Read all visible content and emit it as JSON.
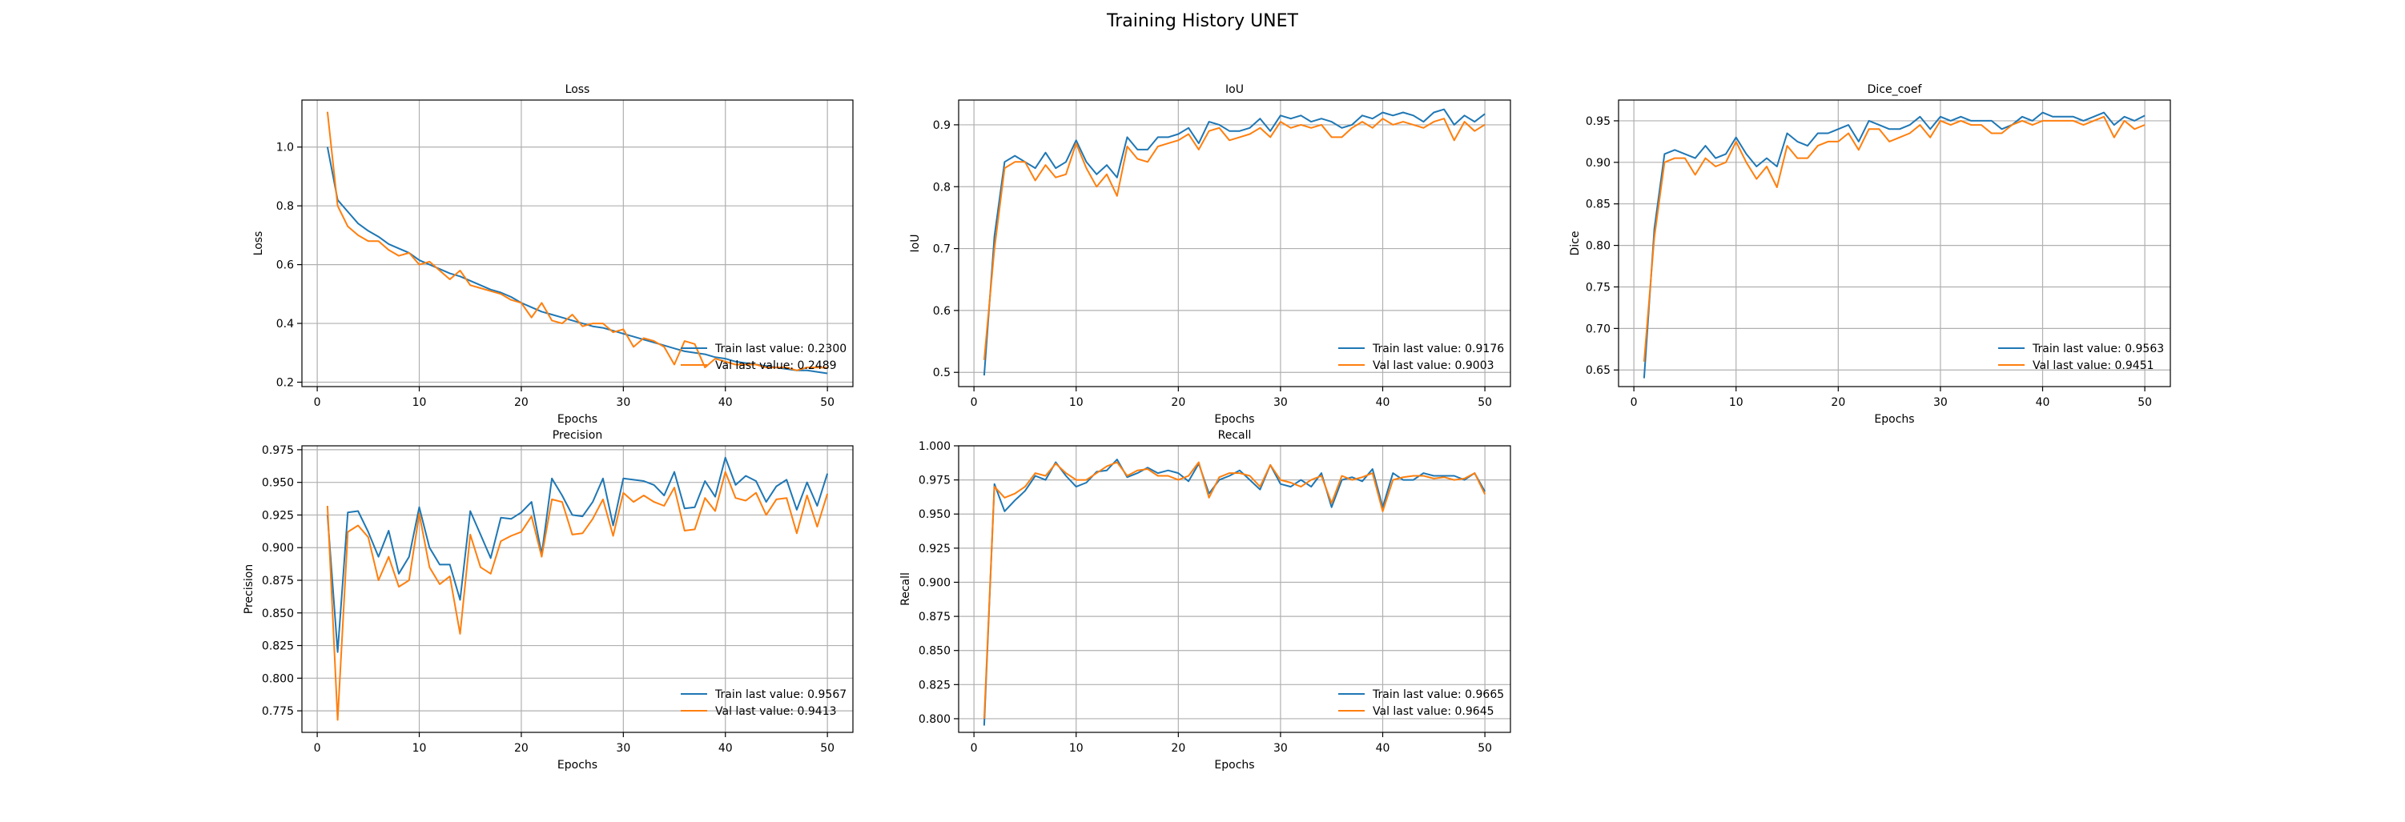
{
  "figure": {
    "title": "Training History UNET"
  },
  "colors": {
    "train": "#1f77b4",
    "val": "#ff7f0e",
    "grid": "#b0b0b0",
    "axis": "#000000"
  },
  "chart_data": [
    {
      "type": "line",
      "title": "Loss",
      "xlabel": "Epochs",
      "ylabel": "Loss",
      "xlim": [
        -1.5,
        52.5
      ],
      "ylim": [
        0.185,
        1.16
      ],
      "xticks": [
        0,
        10,
        20,
        30,
        40,
        50
      ],
      "xtick_labels": [
        "0",
        "10",
        "20",
        "30",
        "40",
        "50"
      ],
      "yticks": [
        0.2,
        0.4,
        0.6,
        0.8,
        1.0
      ],
      "ytick_labels": [
        "0.2",
        "0.4",
        "0.6",
        "0.8",
        "1.0"
      ],
      "grid": true,
      "legend_position": "lower right",
      "x": [
        1,
        2,
        3,
        4,
        5,
        6,
        7,
        8,
        9,
        10,
        11,
        12,
        13,
        14,
        15,
        16,
        17,
        18,
        19,
        20,
        21,
        22,
        23,
        24,
        25,
        26,
        27,
        28,
        29,
        30,
        31,
        32,
        33,
        34,
        35,
        36,
        37,
        38,
        39,
        40,
        41,
        42,
        43,
        44,
        45,
        46,
        47,
        48,
        49,
        50
      ],
      "series": [
        {
          "name": "Train last value: 0.2300",
          "color": "#1f77b4",
          "values": [
            1.0,
            0.82,
            0.78,
            0.74,
            0.715,
            0.695,
            0.67,
            0.655,
            0.64,
            0.615,
            0.6,
            0.585,
            0.57,
            0.56,
            0.545,
            0.53,
            0.515,
            0.505,
            0.49,
            0.47,
            0.455,
            0.44,
            0.43,
            0.42,
            0.41,
            0.4,
            0.39,
            0.385,
            0.375,
            0.365,
            0.355,
            0.345,
            0.335,
            0.325,
            0.315,
            0.305,
            0.3,
            0.295,
            0.285,
            0.28,
            0.27,
            0.265,
            0.26,
            0.255,
            0.25,
            0.245,
            0.24,
            0.24,
            0.235,
            0.23
          ]
        },
        {
          "name": "Val last value: 0.2489",
          "color": "#ff7f0e",
          "values": [
            1.12,
            0.8,
            0.73,
            0.7,
            0.68,
            0.68,
            0.65,
            0.63,
            0.64,
            0.6,
            0.61,
            0.58,
            0.55,
            0.58,
            0.53,
            0.52,
            0.51,
            0.5,
            0.48,
            0.47,
            0.42,
            0.47,
            0.41,
            0.4,
            0.43,
            0.39,
            0.4,
            0.4,
            0.37,
            0.38,
            0.32,
            0.35,
            0.34,
            0.32,
            0.26,
            0.34,
            0.33,
            0.25,
            0.28,
            0.27,
            0.26,
            0.26,
            0.26,
            0.25,
            0.25,
            0.25,
            0.24,
            0.25,
            0.25,
            0.2489
          ]
        }
      ]
    },
    {
      "type": "line",
      "title": "IoU",
      "xlabel": "Epochs",
      "ylabel": "IoU",
      "xlim": [
        -1.5,
        52.5
      ],
      "ylim": [
        0.477,
        0.94
      ],
      "xticks": [
        0,
        10,
        20,
        30,
        40,
        50
      ],
      "xtick_labels": [
        "0",
        "10",
        "20",
        "30",
        "40",
        "50"
      ],
      "yticks": [
        0.5,
        0.6,
        0.7,
        0.8,
        0.9
      ],
      "ytick_labels": [
        "0.5",
        "0.6",
        "0.7",
        "0.8",
        "0.9"
      ],
      "grid": true,
      "legend_position": "lower right",
      "x": [
        1,
        2,
        3,
        4,
        5,
        6,
        7,
        8,
        9,
        10,
        11,
        12,
        13,
        14,
        15,
        16,
        17,
        18,
        19,
        20,
        21,
        22,
        23,
        24,
        25,
        26,
        27,
        28,
        29,
        30,
        31,
        32,
        33,
        34,
        35,
        36,
        37,
        38,
        39,
        40,
        41,
        42,
        43,
        44,
        45,
        46,
        47,
        48,
        49,
        50
      ],
      "series": [
        {
          "name": "Train last value: 0.9176",
          "color": "#1f77b4",
          "values": [
            0.495,
            0.72,
            0.84,
            0.85,
            0.84,
            0.83,
            0.855,
            0.83,
            0.84,
            0.875,
            0.84,
            0.82,
            0.835,
            0.815,
            0.88,
            0.86,
            0.86,
            0.88,
            0.88,
            0.885,
            0.895,
            0.87,
            0.905,
            0.9,
            0.89,
            0.89,
            0.895,
            0.91,
            0.89,
            0.915,
            0.91,
            0.915,
            0.905,
            0.91,
            0.905,
            0.895,
            0.9,
            0.915,
            0.91,
            0.92,
            0.915,
            0.92,
            0.915,
            0.905,
            0.92,
            0.925,
            0.9,
            0.915,
            0.905,
            0.9176
          ]
        },
        {
          "name": "Val last value: 0.9003",
          "color": "#ff7f0e",
          "values": [
            0.52,
            0.7,
            0.83,
            0.84,
            0.84,
            0.81,
            0.835,
            0.815,
            0.82,
            0.87,
            0.83,
            0.8,
            0.82,
            0.785,
            0.865,
            0.845,
            0.84,
            0.865,
            0.87,
            0.875,
            0.885,
            0.86,
            0.89,
            0.895,
            0.875,
            0.88,
            0.885,
            0.895,
            0.88,
            0.905,
            0.895,
            0.9,
            0.895,
            0.9,
            0.88,
            0.88,
            0.895,
            0.905,
            0.895,
            0.91,
            0.9,
            0.905,
            0.9,
            0.895,
            0.905,
            0.91,
            0.875,
            0.905,
            0.89,
            0.9003
          ]
        }
      ]
    },
    {
      "type": "line",
      "title": "Dice_coef",
      "xlabel": "Epochs",
      "ylabel": "Dice",
      "xlim": [
        -1.5,
        52.5
      ],
      "ylim": [
        0.63,
        0.975
      ],
      "xticks": [
        0,
        10,
        20,
        30,
        40,
        50
      ],
      "xtick_labels": [
        "0",
        "10",
        "20",
        "30",
        "40",
        "50"
      ],
      "yticks": [
        0.65,
        0.7,
        0.75,
        0.8,
        0.85,
        0.9,
        0.95
      ],
      "ytick_labels": [
        "0.65",
        "0.70",
        "0.75",
        "0.80",
        "0.85",
        "0.90",
        "0.95"
      ],
      "grid": true,
      "legend_position": "lower right",
      "x": [
        1,
        2,
        3,
        4,
        5,
        6,
        7,
        8,
        9,
        10,
        11,
        12,
        13,
        14,
        15,
        16,
        17,
        18,
        19,
        20,
        21,
        22,
        23,
        24,
        25,
        26,
        27,
        28,
        29,
        30,
        31,
        32,
        33,
        34,
        35,
        36,
        37,
        38,
        39,
        40,
        41,
        42,
        43,
        44,
        45,
        46,
        47,
        48,
        49,
        50
      ],
      "series": [
        {
          "name": "Train last value: 0.9563",
          "color": "#1f77b4",
          "values": [
            0.64,
            0.82,
            0.91,
            0.915,
            0.91,
            0.905,
            0.92,
            0.905,
            0.91,
            0.93,
            0.91,
            0.895,
            0.905,
            0.895,
            0.935,
            0.925,
            0.92,
            0.935,
            0.935,
            0.94,
            0.945,
            0.925,
            0.95,
            0.945,
            0.94,
            0.94,
            0.945,
            0.955,
            0.94,
            0.955,
            0.95,
            0.955,
            0.95,
            0.95,
            0.95,
            0.94,
            0.945,
            0.955,
            0.95,
            0.96,
            0.955,
            0.955,
            0.955,
            0.95,
            0.955,
            0.96,
            0.945,
            0.955,
            0.95,
            0.9563
          ]
        },
        {
          "name": "Val last value: 0.9451",
          "color": "#ff7f0e",
          "values": [
            0.66,
            0.81,
            0.9,
            0.905,
            0.905,
            0.885,
            0.905,
            0.895,
            0.9,
            0.925,
            0.9,
            0.88,
            0.895,
            0.87,
            0.92,
            0.905,
            0.905,
            0.92,
            0.925,
            0.925,
            0.935,
            0.915,
            0.94,
            0.94,
            0.925,
            0.93,
            0.935,
            0.945,
            0.93,
            0.95,
            0.945,
            0.95,
            0.945,
            0.945,
            0.935,
            0.935,
            0.945,
            0.95,
            0.945,
            0.95,
            0.95,
            0.95,
            0.95,
            0.945,
            0.95,
            0.955,
            0.93,
            0.95,
            0.94,
            0.9451
          ]
        }
      ]
    },
    {
      "type": "line",
      "title": "Precision",
      "xlabel": "Epochs",
      "ylabel": "Precision",
      "xlim": [
        -1.5,
        52.5
      ],
      "ylim": [
        0.7585,
        0.978
      ],
      "xticks": [
        0,
        10,
        20,
        30,
        40,
        50
      ],
      "xtick_labels": [
        "0",
        "10",
        "20",
        "30",
        "40",
        "50"
      ],
      "yticks": [
        0.775,
        0.8,
        0.825,
        0.85,
        0.875,
        0.9,
        0.925,
        0.95,
        0.975
      ],
      "ytick_labels": [
        "0.775",
        "0.800",
        "0.825",
        "0.850",
        "0.875",
        "0.900",
        "0.925",
        "0.950",
        "0.975"
      ],
      "grid": true,
      "legend_position": "lower right",
      "x": [
        1,
        2,
        3,
        4,
        5,
        6,
        7,
        8,
        9,
        10,
        11,
        12,
        13,
        14,
        15,
        16,
        17,
        18,
        19,
        20,
        21,
        22,
        23,
        24,
        25,
        26,
        27,
        28,
        29,
        30,
        31,
        32,
        33,
        34,
        35,
        36,
        37,
        38,
        39,
        40,
        41,
        42,
        43,
        44,
        45,
        46,
        47,
        48,
        49,
        50
      ],
      "series": [
        {
          "name": "Train last value: 0.9567",
          "color": "#1f77b4",
          "values": [
            0.925,
            0.82,
            0.927,
            0.928,
            0.912,
            0.893,
            0.913,
            0.88,
            0.893,
            0.931,
            0.9,
            0.887,
            0.887,
            0.86,
            0.928,
            0.91,
            0.892,
            0.923,
            0.922,
            0.927,
            0.935,
            0.895,
            0.953,
            0.94,
            0.925,
            0.924,
            0.935,
            0.953,
            0.917,
            0.953,
            0.952,
            0.951,
            0.948,
            0.94,
            0.958,
            0.93,
            0.931,
            0.951,
            0.939,
            0.969,
            0.948,
            0.955,
            0.951,
            0.935,
            0.947,
            0.952,
            0.929,
            0.95,
            0.932,
            0.9567
          ]
        },
        {
          "name": "Val last value: 0.9413",
          "color": "#ff7f0e",
          "values": [
            0.932,
            0.768,
            0.912,
            0.917,
            0.908,
            0.875,
            0.893,
            0.87,
            0.875,
            0.926,
            0.885,
            0.872,
            0.878,
            0.834,
            0.91,
            0.885,
            0.88,
            0.905,
            0.909,
            0.912,
            0.924,
            0.893,
            0.937,
            0.935,
            0.91,
            0.911,
            0.922,
            0.937,
            0.909,
            0.942,
            0.935,
            0.94,
            0.935,
            0.932,
            0.946,
            0.913,
            0.914,
            0.938,
            0.928,
            0.958,
            0.938,
            0.936,
            0.942,
            0.925,
            0.937,
            0.938,
            0.911,
            0.94,
            0.916,
            0.9413
          ]
        }
      ]
    },
    {
      "type": "line",
      "title": "Recall",
      "xlabel": "Epochs",
      "ylabel": "Recall",
      "xlim": [
        -1.5,
        52.5
      ],
      "ylim": [
        0.79,
        1.0
      ],
      "xticks": [
        0,
        10,
        20,
        30,
        40,
        50
      ],
      "xtick_labels": [
        "0",
        "10",
        "20",
        "30",
        "40",
        "50"
      ],
      "yticks": [
        0.8,
        0.825,
        0.85,
        0.875,
        0.9,
        0.925,
        0.95,
        0.975,
        1.0
      ],
      "ytick_labels": [
        "0.800",
        "0.825",
        "0.850",
        "0.875",
        "0.900",
        "0.925",
        "0.950",
        "0.975",
        "1.000"
      ],
      "grid": true,
      "legend_position": "lower right",
      "x": [
        1,
        2,
        3,
        4,
        5,
        6,
        7,
        8,
        9,
        10,
        11,
        12,
        13,
        14,
        15,
        16,
        17,
        18,
        19,
        20,
        21,
        22,
        23,
        24,
        25,
        26,
        27,
        28,
        29,
        30,
        31,
        32,
        33,
        34,
        35,
        36,
        37,
        38,
        39,
        40,
        41,
        42,
        43,
        44,
        45,
        46,
        47,
        48,
        49,
        50
      ],
      "series": [
        {
          "name": "Train last value: 0.9665",
          "color": "#1f77b4",
          "values": [
            0.795,
            0.972,
            0.952,
            0.96,
            0.967,
            0.978,
            0.975,
            0.988,
            0.978,
            0.97,
            0.973,
            0.981,
            0.982,
            0.99,
            0.977,
            0.98,
            0.984,
            0.98,
            0.982,
            0.98,
            0.974,
            0.987,
            0.965,
            0.975,
            0.978,
            0.982,
            0.975,
            0.968,
            0.986,
            0.972,
            0.97,
            0.975,
            0.97,
            0.98,
            0.955,
            0.975,
            0.977,
            0.974,
            0.983,
            0.955,
            0.98,
            0.975,
            0.975,
            0.98,
            0.978,
            0.978,
            0.978,
            0.975,
            0.98,
            0.9665
          ]
        },
        {
          "name": "Val last value: 0.9645",
          "color": "#ff7f0e",
          "values": [
            0.8,
            0.97,
            0.962,
            0.965,
            0.97,
            0.98,
            0.978,
            0.987,
            0.98,
            0.975,
            0.975,
            0.98,
            0.985,
            0.988,
            0.978,
            0.982,
            0.983,
            0.978,
            0.978,
            0.975,
            0.978,
            0.988,
            0.962,
            0.977,
            0.98,
            0.98,
            0.978,
            0.97,
            0.986,
            0.975,
            0.973,
            0.97,
            0.975,
            0.978,
            0.958,
            0.978,
            0.975,
            0.977,
            0.98,
            0.952,
            0.975,
            0.977,
            0.978,
            0.978,
            0.976,
            0.977,
            0.975,
            0.976,
            0.98,
            0.9645
          ]
        }
      ]
    }
  ]
}
